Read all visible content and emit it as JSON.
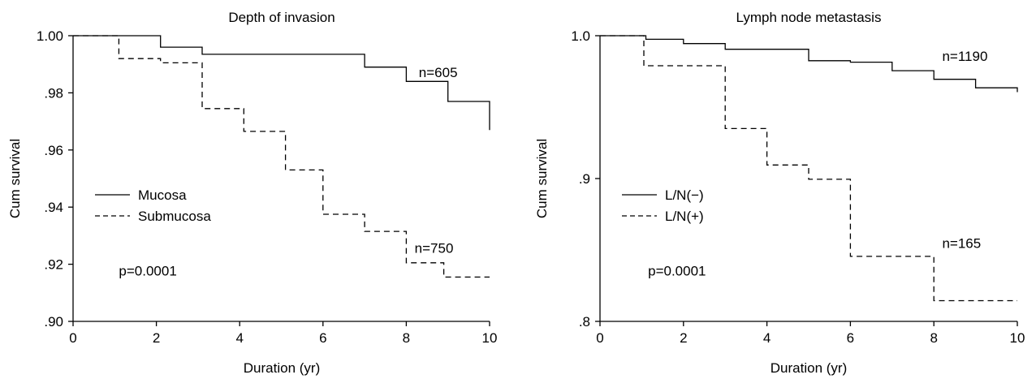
{
  "chart_data": [
    {
      "type": "line",
      "step": true,
      "title": "Depth of invasion",
      "xlabel": "Duration (yr)",
      "ylabel": "Cum survival",
      "xlim": [
        0,
        10
      ],
      "ylim": [
        0.9,
        1.0
      ],
      "xticks": [
        0,
        2,
        4,
        6,
        8,
        10
      ],
      "xtick_labels": [
        "0",
        "2",
        "4",
        "6",
        "8",
        "10"
      ],
      "yticks": [
        0.9,
        0.92,
        0.94,
        0.96,
        0.98,
        1.0
      ],
      "ytick_labels": [
        ".90",
        ".92",
        ".94",
        ".96",
        ".98",
        "1.00"
      ],
      "grid": false,
      "legend_position": "left-middle",
      "series": [
        {
          "name": "Mucosa",
          "style": "solid",
          "points": [
            [
              0,
              1.0
            ],
            [
              2.1,
              1.0
            ],
            [
              2.1,
              0.996
            ],
            [
              3.1,
              0.996
            ],
            [
              3.1,
              0.9935
            ],
            [
              7.0,
              0.9935
            ],
            [
              7.0,
              0.989
            ],
            [
              8.0,
              0.989
            ],
            [
              8.0,
              0.984
            ],
            [
              9.0,
              0.984
            ],
            [
              9.0,
              0.977
            ],
            [
              10.0,
              0.977
            ],
            [
              10.0,
              0.967
            ]
          ]
        },
        {
          "name": "Submucosa",
          "style": "dashed",
          "points": [
            [
              0,
              1.0
            ],
            [
              1.1,
              1.0
            ],
            [
              1.1,
              0.992
            ],
            [
              2.1,
              0.992
            ],
            [
              2.1,
              0.9905
            ],
            [
              3.1,
              0.9905
            ],
            [
              3.1,
              0.9745
            ],
            [
              4.1,
              0.9745
            ],
            [
              4.1,
              0.9665
            ],
            [
              5.1,
              0.9665
            ],
            [
              5.1,
              0.953
            ],
            [
              6.0,
              0.953
            ],
            [
              6.0,
              0.9375
            ],
            [
              7.0,
              0.9375
            ],
            [
              7.0,
              0.9315
            ],
            [
              8.0,
              0.9315
            ],
            [
              8.0,
              0.9205
            ],
            [
              8.9,
              0.9205
            ],
            [
              8.9,
              0.9155
            ],
            [
              10.0,
              0.9155
            ]
          ]
        }
      ],
      "annotations": [
        {
          "text": "n=605",
          "x": 8.3,
          "y": 0.9855
        },
        {
          "text": "n=750",
          "x": 8.2,
          "y": 0.924
        },
        {
          "text": "p=0.0001",
          "x": 1.1,
          "y": 0.916
        }
      ]
    },
    {
      "type": "line",
      "step": true,
      "title": "Lymph node metastasis",
      "xlabel": "Duration (yr)",
      "ylabel": "Cum survival",
      "xlim": [
        0,
        10
      ],
      "ylim": [
        0.8,
        1.0
      ],
      "xticks": [
        0,
        2,
        4,
        6,
        8,
        10
      ],
      "xtick_labels": [
        "0",
        "2",
        "4",
        "6",
        "8",
        "10"
      ],
      "yticks": [
        0.8,
        0.9,
        1.0
      ],
      "ytick_labels": [
        ".8",
        ".9",
        "1.0"
      ],
      "grid": false,
      "legend_position": "left-middle",
      "series": [
        {
          "name": "L/N(−)",
          "style": "solid",
          "points": [
            [
              0,
              1.0
            ],
            [
              1.1,
              1.0
            ],
            [
              1.1,
              0.9975
            ],
            [
              2.0,
              0.9975
            ],
            [
              2.0,
              0.9945
            ],
            [
              3.0,
              0.9945
            ],
            [
              3.0,
              0.9905
            ],
            [
              5.0,
              0.9905
            ],
            [
              5.0,
              0.9825
            ],
            [
              6.0,
              0.9825
            ],
            [
              6.0,
              0.9815
            ],
            [
              7.0,
              0.9815
            ],
            [
              7.0,
              0.9755
            ],
            [
              8.0,
              0.9755
            ],
            [
              8.0,
              0.9695
            ],
            [
              9.0,
              0.9695
            ],
            [
              9.0,
              0.9635
            ],
            [
              10.0,
              0.9635
            ],
            [
              10.0,
              0.9605
            ]
          ]
        },
        {
          "name": "L/N(+)",
          "style": "dashed",
          "points": [
            [
              0,
              1.0
            ],
            [
              1.05,
              1.0
            ],
            [
              1.05,
              0.979
            ],
            [
              3.0,
              0.979
            ],
            [
              3.0,
              0.935
            ],
            [
              4.0,
              0.935
            ],
            [
              4.0,
              0.9095
            ],
            [
              5.0,
              0.9095
            ],
            [
              5.0,
              0.8995
            ],
            [
              6.0,
              0.8995
            ],
            [
              6.0,
              0.8455
            ],
            [
              8.0,
              0.8455
            ],
            [
              8.0,
              0.8145
            ],
            [
              10.0,
              0.8145
            ]
          ]
        }
      ],
      "annotations": [
        {
          "text": "n=1190",
          "x": 8.2,
          "y": 0.9825
        },
        {
          "text": "n=165",
          "x": 8.2,
          "y": 0.8515
        },
        {
          "text": "p=0.0001",
          "x": 1.15,
          "y": 0.832
        }
      ]
    }
  ]
}
